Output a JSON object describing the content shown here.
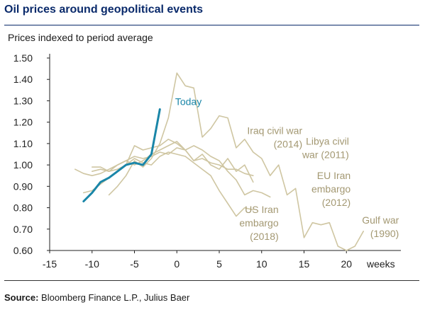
{
  "header": {
    "title": "Oil prices around geopolitical events",
    "subtitle": "Prices indexed to period average"
  },
  "footer": {
    "source_label": "Source:",
    "source_text": "Bloomberg Finance L.P., Julius Baer"
  },
  "colors": {
    "title": "#0a2a6b",
    "today": "#1a86a8",
    "history": "#cfc6a2",
    "axis": "#222222",
    "label_history": "#a39872"
  },
  "chart_data": {
    "type": "line",
    "title": "Oil prices around geopolitical events",
    "ylabel": "Prices indexed to period average",
    "xlabel": "weeks",
    "xlim": [
      -15,
      25
    ],
    "ylim": [
      0.6,
      1.5
    ],
    "xticks": [
      -15,
      -10,
      -5,
      0,
      5,
      10,
      15,
      20
    ],
    "xtick_labels": [
      "-15",
      "-10",
      "-5",
      "0",
      "5",
      "10",
      "15",
      "20"
    ],
    "yticks": [
      0.6,
      0.7,
      0.8,
      0.9,
      1.0,
      1.1,
      1.2,
      1.3,
      1.4,
      1.5
    ],
    "ytick_labels": [
      "0.60",
      "0.70",
      "0.80",
      "0.90",
      "1.00",
      "1.10",
      "1.20",
      "1.30",
      "1.40",
      "1.50"
    ],
    "grid": false,
    "series": [
      {
        "name": "Today",
        "highlight": true,
        "x": [
          -11,
          -10,
          -9,
          -8,
          -7,
          -6,
          -5,
          -4,
          -3,
          -2
        ],
        "y": [
          0.83,
          0.87,
          0.92,
          0.94,
          0.97,
          1.0,
          1.01,
          1.0,
          1.05,
          1.26
        ]
      },
      {
        "name": "Gulf war (1990)",
        "highlight": false,
        "x": [
          -8,
          -7,
          -6,
          -5,
          -4,
          -3,
          -2,
          -1,
          0,
          1,
          2,
          3,
          4,
          5,
          6,
          7,
          8,
          9,
          10,
          11,
          12,
          13,
          14,
          15,
          16,
          17,
          18,
          19,
          20,
          21,
          22
        ],
        "y": [
          0.86,
          0.9,
          0.95,
          1.02,
          0.99,
          1.03,
          1.1,
          1.22,
          1.43,
          1.37,
          1.36,
          1.13,
          1.17,
          1.23,
          1.22,
          1.08,
          1.12,
          1.06,
          1.03,
          0.95,
          1.0,
          0.86,
          0.89,
          0.66,
          0.73,
          0.72,
          0.73,
          0.62,
          0.6,
          0.62,
          0.69
        ]
      },
      {
        "name": "Iraq civil war (2014)",
        "highlight": false,
        "x": [
          -10,
          -9,
          -8,
          -7,
          -6,
          -5,
          -4,
          -3,
          -2,
          -1,
          0,
          1,
          2,
          3,
          4,
          5,
          6,
          7,
          8,
          9
        ],
        "y": [
          0.99,
          0.99,
          0.97,
          1.0,
          1.02,
          1.04,
          1.03,
          1.04,
          1.06,
          1.05,
          1.08,
          1.07,
          1.02,
          1.03,
          1.01,
          1.0,
          0.98,
          0.98,
          0.96,
          0.95
        ]
      },
      {
        "name": "Libya civil war (2011)",
        "highlight": false,
        "x": [
          -11,
          -10,
          -9,
          -8,
          -7,
          -6,
          -5,
          -4,
          -3,
          -2,
          -1,
          0,
          1,
          2,
          3,
          4,
          5,
          6,
          7,
          8,
          9
        ],
        "y": [
          0.87,
          0.88,
          0.91,
          0.94,
          0.97,
          1.0,
          1.09,
          1.07,
          1.08,
          1.09,
          1.12,
          1.1,
          1.07,
          1.02,
          1.05,
          1.0,
          0.98,
          1.03,
          0.97,
          1.0,
          0.92
        ]
      },
      {
        "name": "EU Iran embargo (2012)",
        "highlight": false,
        "x": [
          -12,
          -11,
          -10,
          -9,
          -8,
          -7,
          -6,
          -5,
          -4,
          -3,
          -2,
          -1,
          0,
          1,
          2,
          3,
          4,
          5,
          6,
          7,
          8,
          9,
          10,
          11
        ],
        "y": [
          0.98,
          0.96,
          0.95,
          0.96,
          0.98,
          1.0,
          1.02,
          1.0,
          1.02,
          1.05,
          1.07,
          1.09,
          1.11,
          1.07,
          1.09,
          1.07,
          1.04,
          1.02,
          0.97,
          0.93,
          0.86,
          0.88,
          0.87,
          0.85
        ]
      },
      {
        "name": "US Iran embargo (2018)",
        "highlight": false,
        "x": [
          -10,
          -9,
          -8,
          -7,
          -6,
          -5,
          -4,
          -3,
          -2,
          -1,
          0,
          1,
          2,
          3,
          4,
          5,
          6,
          7,
          8,
          9
        ],
        "y": [
          0.97,
          0.98,
          0.97,
          0.98,
          1.0,
          1.03,
          1.01,
          1.0,
          1.04,
          1.06,
          1.05,
          1.04,
          1.01,
          0.98,
          0.95,
          0.88,
          0.82,
          0.76,
          0.8,
          0.79
        ]
      }
    ],
    "annotations": [
      {
        "id": "today",
        "lines": [
          "Today"
        ],
        "at": [
          -0.2,
          1.28
        ],
        "anchor": "start",
        "highlight": true
      },
      {
        "id": "iraq",
        "lines": [
          "Iraq civil war",
          "(2014)"
        ],
        "at": [
          14.8,
          1.145
        ],
        "anchor": "end",
        "highlight": false
      },
      {
        "id": "libya",
        "lines": [
          "Libya civil",
          "war (2011)"
        ],
        "at": [
          20.3,
          1.095
        ],
        "anchor": "end",
        "highlight": false
      },
      {
        "id": "eu-iran",
        "lines": [
          "EU Iran",
          "embargo",
          "(2012)"
        ],
        "at": [
          20.5,
          0.935
        ],
        "anchor": "end",
        "highlight": false
      },
      {
        "id": "us-iran",
        "lines": [
          "US Iran",
          "embargo",
          "(2018)"
        ],
        "at": [
          12.0,
          0.775
        ],
        "anchor": "end",
        "highlight": false
      },
      {
        "id": "gulf",
        "lines": [
          "Gulf war",
          "(1990)"
        ],
        "at": [
          26.2,
          0.725
        ],
        "anchor": "end",
        "highlight": false
      }
    ]
  }
}
